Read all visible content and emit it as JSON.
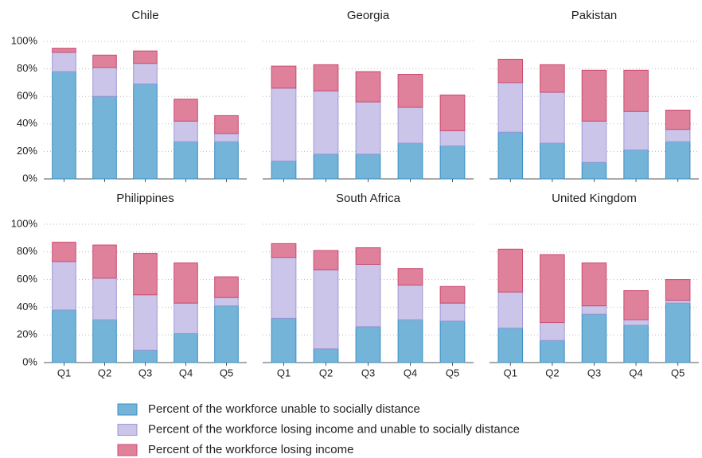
{
  "chart_data": {
    "type": "bar",
    "stacked": true,
    "categories": [
      "Q1",
      "Q2",
      "Q3",
      "Q4",
      "Q5"
    ],
    "ylim": [
      0,
      100
    ],
    "yticks": [
      {
        "value": 0,
        "label": "0%"
      },
      {
        "value": 20,
        "label": "20%"
      },
      {
        "value": 40,
        "label": "40%"
      },
      {
        "value": 60,
        "label": "60%"
      },
      {
        "value": 80,
        "label": "80%"
      },
      {
        "value": 100,
        "label": "100%"
      }
    ],
    "grid": true,
    "series": [
      {
        "name": "Percent of the workforce unable to socially distance",
        "color": "#74b4d9",
        "stroke": "#3b8fc1"
      },
      {
        "name": "Percent of the workforce losing income and unable to socially distance",
        "color": "#cbc5ea",
        "stroke": "#a097d6"
      },
      {
        "name": "Percent of the workforce losing income",
        "color": "#df819b",
        "stroke": "#c84b70"
      }
    ],
    "panels": [
      {
        "title": "Chile",
        "values": [
          [
            78,
            60,
            69,
            27,
            27
          ],
          [
            14,
            21,
            15,
            15,
            6
          ],
          [
            3,
            9,
            9,
            16,
            13
          ]
        ]
      },
      {
        "title": "Georgia",
        "values": [
          [
            13,
            18,
            18,
            26,
            24
          ],
          [
            53,
            46,
            38,
            26,
            11
          ],
          [
            16,
            19,
            22,
            24,
            26
          ]
        ]
      },
      {
        "title": "Pakistan",
        "values": [
          [
            34,
            26,
            12,
            21,
            27
          ],
          [
            36,
            37,
            30,
            28,
            9
          ],
          [
            17,
            20,
            37,
            30,
            14
          ]
        ]
      },
      {
        "title": "Philippines",
        "values": [
          [
            38,
            31,
            9,
            21,
            41
          ],
          [
            35,
            30,
            40,
            22,
            6
          ],
          [
            14,
            24,
            30,
            29,
            15
          ]
        ]
      },
      {
        "title": "South Africa",
        "values": [
          [
            32,
            10,
            26,
            31,
            30
          ],
          [
            44,
            57,
            45,
            25,
            13
          ],
          [
            10,
            14,
            12,
            12,
            12
          ]
        ]
      },
      {
        "title": "United Kingdom",
        "values": [
          [
            25,
            16,
            35,
            27,
            43
          ],
          [
            26,
            13,
            6,
            4,
            2
          ],
          [
            31,
            49,
            31,
            21,
            15
          ]
        ]
      }
    ]
  }
}
